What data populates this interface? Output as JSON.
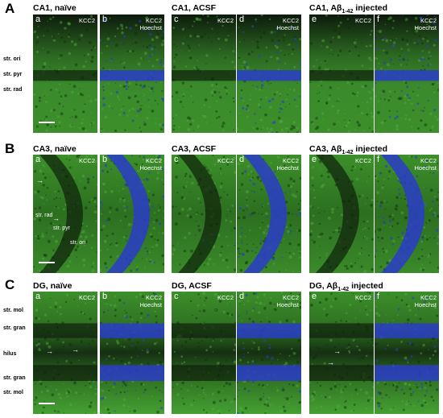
{
  "sections": [
    {
      "letter": "A",
      "groups": [
        {
          "title": "CA1, naïve",
          "title_sub": "",
          "title_rest": ""
        },
        {
          "title": "CA1, ACSF",
          "title_sub": "",
          "title_rest": ""
        },
        {
          "title": "CA1, Aβ",
          "title_sub": "1-42",
          "title_rest": " injected"
        }
      ],
      "panel_letters": [
        "a",
        "b",
        "c",
        "d",
        "e",
        "f"
      ],
      "regions_outside": [
        "str. ori",
        "str. pyr",
        "str. rad"
      ],
      "regions_inside": []
    },
    {
      "letter": "B",
      "groups": [
        {
          "title": "CA3, naïve",
          "title_sub": "",
          "title_rest": ""
        },
        {
          "title": "CA3, ACSF",
          "title_sub": "",
          "title_rest": ""
        },
        {
          "title": "CA3, Aβ",
          "title_sub": "1-42",
          "title_rest": " injected"
        }
      ],
      "panel_letters": [
        "a",
        "b",
        "c",
        "d",
        "e",
        "f"
      ],
      "regions_outside": [],
      "regions_inside": [
        "str. rad",
        "str. pyr",
        "str. ori"
      ]
    },
    {
      "letter": "C",
      "groups": [
        {
          "title": "DG, naïve",
          "title_sub": "",
          "title_rest": ""
        },
        {
          "title": "DG, ACSF",
          "title_sub": "",
          "title_rest": ""
        },
        {
          "title": "DG, Aβ",
          "title_sub": "1-42",
          "title_rest": " injected"
        }
      ],
      "panel_letters": [
        "a",
        "b",
        "c",
        "d",
        "e",
        "f"
      ],
      "regions_outside": [
        "str. mol",
        "str. gran",
        "hilus",
        "str. gran",
        "str. mol"
      ],
      "regions_inside": []
    }
  ],
  "marker_single": "KCC2",
  "marker_merge_1": "KCC2",
  "marker_merge_2": "Hoechst",
  "colors": {
    "kcc2": "#3c8f2a",
    "hoechst": "#2a3cc8",
    "background": "#ffffff"
  }
}
